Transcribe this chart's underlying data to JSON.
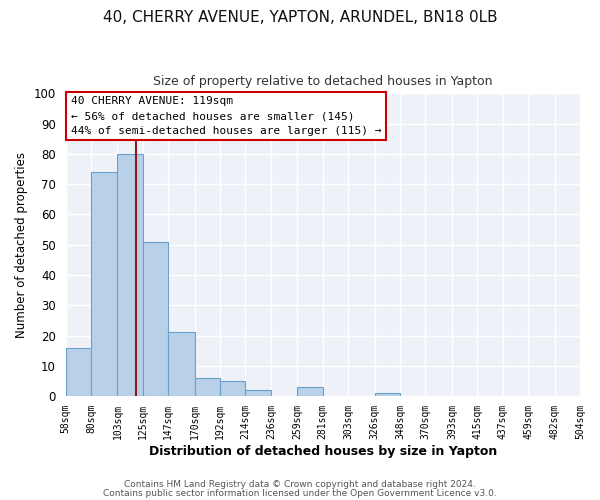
{
  "title": "40, CHERRY AVENUE, YAPTON, ARUNDEL, BN18 0LB",
  "subtitle": "Size of property relative to detached houses in Yapton",
  "xlabel": "Distribution of detached houses by size in Yapton",
  "ylabel": "Number of detached properties",
  "bar_edges": [
    58,
    80,
    103,
    125,
    147,
    170,
    192,
    214,
    236,
    259,
    281,
    303,
    326,
    348,
    370,
    393,
    415,
    437,
    459,
    482,
    504
  ],
  "bar_heights": [
    16,
    74,
    80,
    51,
    21,
    6,
    5,
    2,
    0,
    3,
    0,
    0,
    1,
    0,
    0,
    0,
    0,
    0,
    0,
    0
  ],
  "bar_color": "#b8d0e8",
  "bar_edge_color": "#6aa0cc",
  "vline_x": 119,
  "vline_color": "#8b1a1a",
  "ylim": [
    0,
    100
  ],
  "yticks": [
    0,
    10,
    20,
    30,
    40,
    50,
    60,
    70,
    80,
    90,
    100
  ],
  "tick_labels": [
    "58sqm",
    "80sqm",
    "103sqm",
    "125sqm",
    "147sqm",
    "170sqm",
    "192sqm",
    "214sqm",
    "236sqm",
    "259sqm",
    "281sqm",
    "303sqm",
    "326sqm",
    "348sqm",
    "370sqm",
    "393sqm",
    "415sqm",
    "437sqm",
    "459sqm",
    "482sqm",
    "504sqm"
  ],
  "annotation_title": "40 CHERRY AVENUE: 119sqm",
  "annotation_line1": "← 56% of detached houses are smaller (145)",
  "annotation_line2": "44% of semi-detached houses are larger (115) →",
  "annotation_box_color": "#ffffff",
  "annotation_box_edge": "#cc0000",
  "footer1": "Contains HM Land Registry data © Crown copyright and database right 2024.",
  "footer2": "Contains public sector information licensed under the Open Government Licence v3.0.",
  "fig_bg_color": "#ffffff",
  "plot_bg_color": "#eef2f8",
  "grid_color": "#ffffff",
  "title_fontsize": 11,
  "subtitle_fontsize": 9
}
